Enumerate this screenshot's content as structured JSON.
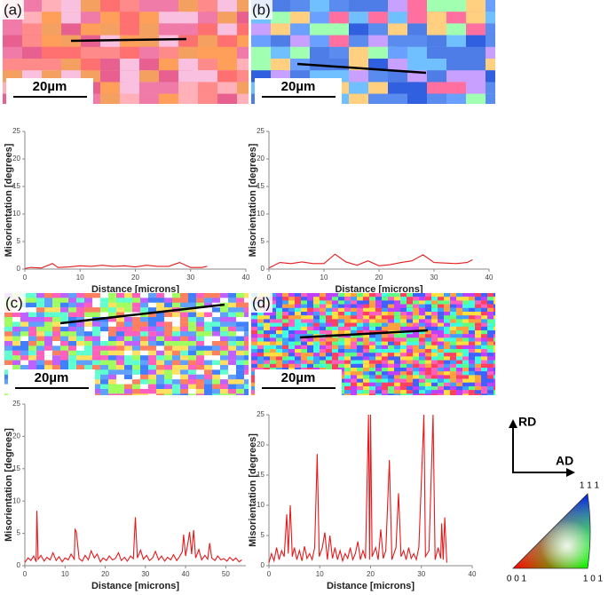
{
  "chart_data": [
    {
      "type": "line",
      "panel_label": "(a)",
      "scale_bar": "20µm",
      "x_label": "Distance [microns]",
      "y_label": "Misorientation [degrees]",
      "xlim": [
        0,
        40
      ],
      "ylim": [
        0,
        25
      ],
      "xticks": [
        0,
        10,
        20,
        30,
        40
      ],
      "yticks": [
        0,
        5,
        10,
        15,
        20,
        25
      ],
      "color": "#e41a1c",
      "x": [
        0,
        1,
        3,
        5,
        6,
        8,
        10,
        12,
        14,
        16,
        18,
        20,
        22,
        24,
        26,
        28,
        30,
        32,
        33
      ],
      "values": [
        0.1,
        0.3,
        0.2,
        1,
        0.3,
        0.4,
        0.6,
        0.5,
        0.7,
        0.5,
        0.6,
        0.4,
        0.7,
        0.5,
        0.5,
        1.2,
        0.3,
        0.3,
        0.5
      ]
    },
    {
      "type": "line",
      "panel_label": "(b)",
      "scale_bar": "20µm",
      "x_label": "Distance [microns]",
      "y_label": "Misorientation [degrees]",
      "xlim": [
        0,
        40
      ],
      "ylim": [
        0,
        25
      ],
      "xticks": [
        0,
        10,
        20,
        30,
        40
      ],
      "yticks": [
        0,
        5,
        10,
        15,
        20,
        25
      ],
      "color": "#e41a1c",
      "x": [
        0,
        2,
        4,
        6,
        8,
        10,
        12,
        14,
        16,
        18,
        20,
        22,
        24,
        26,
        28,
        30,
        32,
        34,
        36,
        37
      ],
      "values": [
        0.2,
        1.2,
        1,
        1.3,
        1,
        1,
        2.7,
        1.3,
        0.7,
        1.5,
        0.6,
        0.8,
        1.2,
        1.5,
        2.6,
        1.2,
        1.1,
        1,
        1.2,
        1.7
      ]
    },
    {
      "type": "line",
      "panel_label": "(c)",
      "scale_bar": "20µm",
      "x_label": "Distance [microns]",
      "y_label": "Misorientation [degrees]",
      "xlim": [
        0,
        55
      ],
      "ylim": [
        0,
        25
      ],
      "xticks": [
        0,
        10,
        20,
        30,
        40,
        50
      ],
      "yticks": [
        0,
        5,
        10,
        15,
        20,
        25
      ],
      "color": "#e41a1c",
      "x": [
        0,
        0.8,
        1.5,
        2.2,
        2.8,
        3,
        3.3,
        4,
        4.8,
        5.5,
        6.3,
        7,
        7.8,
        8.5,
        9.3,
        10,
        10.8,
        11.5,
        12.3,
        12.5,
        12.8,
        13.5,
        14.3,
        15,
        15.8,
        16.5,
        17.3,
        18,
        18.8,
        19.5,
        20.3,
        21,
        21.8,
        22.5,
        23.3,
        24,
        24.8,
        25.5,
        26.3,
        27,
        27.5,
        28,
        28.8,
        29.5,
        30.3,
        31,
        31.8,
        32.5,
        33.3,
        34,
        34.8,
        35.5,
        36.3,
        37,
        37.8,
        38.5,
        39.2,
        39.5,
        40,
        40.5,
        41,
        41.5,
        42,
        42.5,
        43.3,
        44,
        44.8,
        45.5,
        46,
        46.5,
        47.3,
        48,
        48.8,
        49.5,
        50.3,
        51,
        51.8,
        52.5,
        53.3,
        54
      ],
      "values": [
        0.5,
        1.2,
        0.8,
        1.5,
        0.6,
        8.5,
        1,
        1.6,
        0.7,
        1.3,
        0.9,
        2,
        0.8,
        1.4,
        0.6,
        1.2,
        0.9,
        1.8,
        1,
        5.6,
        5.3,
        1.1,
        0.7,
        1.6,
        0.9,
        2.3,
        1.2,
        1.8,
        0.6,
        1.2,
        0.8,
        1.5,
        0.9,
        1.1,
        2,
        0.8,
        1.3,
        0.7,
        1.5,
        1.1,
        7.5,
        1.2,
        2.4,
        1,
        1.6,
        0.8,
        1.2,
        2.2,
        0.9,
        1.5,
        0.7,
        1.3,
        0.9,
        1.7,
        0.8,
        1.4,
        2.2,
        4.8,
        1.5,
        3.2,
        5.2,
        1.8,
        5.5,
        1.2,
        2.5,
        0.9,
        1.6,
        1,
        3.5,
        1.2,
        0.8,
        1.5,
        0.9,
        1.1,
        0.7,
        1.3,
        0.8,
        1.2,
        0.6,
        0.9
      ]
    },
    {
      "type": "line",
      "panel_label": "(d)",
      "scale_bar": "20µm",
      "x_label": "Distance [microns]",
      "y_label": "Misorientation [degrees]",
      "xlim": [
        0,
        40
      ],
      "ylim": [
        0,
        25
      ],
      "xticks": [
        0,
        10,
        20,
        30,
        40
      ],
      "yticks": [
        0,
        5,
        10,
        15,
        20,
        25
      ],
      "color": "#e41a1c",
      "x": [
        0,
        0.5,
        1,
        1.5,
        2,
        2.5,
        3,
        3.5,
        3.8,
        4.2,
        4.6,
        5,
        5.5,
        6,
        6.5,
        7,
        7.5,
        8,
        8.5,
        9,
        9.5,
        9.9,
        10.5,
        11,
        11.5,
        12,
        12.5,
        13,
        13.5,
        14,
        14.5,
        15,
        15.5,
        16,
        16.5,
        17,
        17.5,
        18,
        18.5,
        19,
        19.6,
        19.8,
        20,
        20.3,
        21,
        21.5,
        22,
        22.5,
        23,
        23.7,
        24.2,
        25,
        25.5,
        26,
        26.5,
        27,
        27.5,
        28,
        28.5,
        29,
        29.5,
        30.5,
        30.8,
        31.5,
        32.3,
        32.7,
        33.3,
        33.8,
        34,
        34.3,
        34.6,
        35
      ],
      "values": [
        0.5,
        2,
        0.8,
        3,
        1,
        2.5,
        1.5,
        8.5,
        2,
        10,
        1.5,
        3,
        1,
        2.5,
        0.8,
        3.2,
        1.2,
        2,
        1,
        3,
        18.5,
        1.5,
        3,
        5.5,
        1,
        5,
        1.2,
        3,
        1,
        2.5,
        0.8,
        2,
        1.2,
        3,
        1,
        2,
        4,
        1,
        2.5,
        1.2,
        25,
        1,
        25,
        1.5,
        3,
        1,
        6,
        1.2,
        2.5,
        17.5,
        1,
        3,
        12,
        1.5,
        2.5,
        1,
        3,
        1.2,
        2,
        1,
        3,
        25,
        1.5,
        2.5,
        25,
        1,
        3,
        1.2,
        7,
        1,
        8,
        0.5
      ]
    }
  ],
  "legend": {
    "rd": "RD",
    "ad": "AD",
    "ipf_111": "1 1 1",
    "ipf_001": "0 0 1",
    "ipf_101": "1 0 1"
  }
}
